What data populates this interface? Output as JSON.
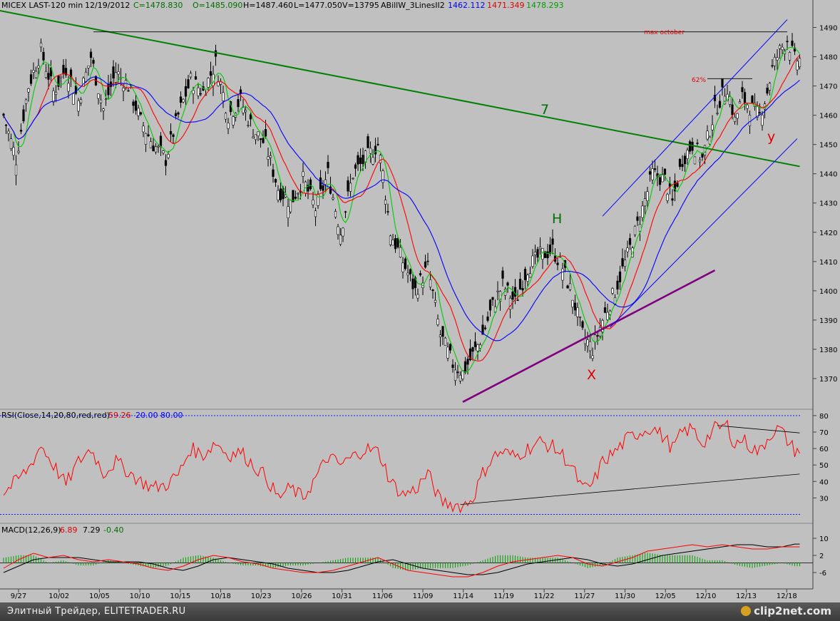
{
  "header": {
    "symbol": "MICEX LAST-120 min",
    "date": "12/19/2012",
    "close": "C=1478.830",
    "open": "O=1485.090",
    "high": "H=1487.460",
    "low": "L=1477.050",
    "volume": "V=13795",
    "study": "ABillW_3LinesII2",
    "ma_blue": "1462.112",
    "ma_red": "1471.349",
    "ma_green": "1478.293"
  },
  "colors": {
    "background": "#c0c0c0",
    "ma_blue": "#0000ff",
    "ma_red": "#ff0000",
    "ma_green": "#00cc00",
    "trend_green": "#008000",
    "trend_purple": "#800080"
  },
  "annotations": {
    "max_october": "max october",
    "fib": "62%",
    "wave_7": "7",
    "wave_h": "H",
    "wave_x": "X",
    "wave_y": "y"
  },
  "rsi_panel": {
    "label": "RSI(Close,14,20,80,red,red)",
    "value": "59.26",
    "low": "20.00",
    "high": "80.00"
  },
  "macd_panel": {
    "label": "MACD(12,26,9)",
    "macd": "6.89",
    "signal": "7.29",
    "hist": "-0.40"
  },
  "footer": {
    "site": "Элитный Трейдер, ELITETRADER.RU",
    "logo": "clip2net.com"
  },
  "chart_data": [
    {
      "type": "candlestick",
      "title": "MICEX LAST-120 min",
      "ylim": [
        1360,
        1495
      ],
      "y_ticks": [
        1370,
        1380,
        1390,
        1400,
        1410,
        1420,
        1430,
        1440,
        1450,
        1460,
        1470,
        1480,
        1490
      ],
      "x_ticks": [
        "9/27",
        "10/02",
        "10/05",
        "10/10",
        "10/15",
        "10/18",
        "10/23",
        "10/26",
        "10/31",
        "11/06",
        "11/09",
        "11/14",
        "11/19",
        "11/22",
        "11/27",
        "11/30",
        "12/05",
        "12/10",
        "12/13",
        "12/18"
      ],
      "anchors": [
        [
          0,
          1460
        ],
        [
          5,
          1445
        ],
        [
          10,
          1470
        ],
        [
          15,
          1482
        ],
        [
          20,
          1468
        ],
        [
          25,
          1476
        ],
        [
          30,
          1465
        ],
        [
          35,
          1480
        ],
        [
          40,
          1462
        ],
        [
          45,
          1475
        ],
        [
          50,
          1470
        ],
        [
          55,
          1458
        ],
        [
          60,
          1450
        ],
        [
          65,
          1445
        ],
        [
          70,
          1460
        ],
        [
          75,
          1472
        ],
        [
          80,
          1468
        ],
        [
          85,
          1478
        ],
        [
          90,
          1460
        ],
        [
          95,
          1465
        ],
        [
          100,
          1455
        ],
        [
          105,
          1450
        ],
        [
          110,
          1435
        ],
        [
          115,
          1430
        ],
        [
          120,
          1438
        ],
        [
          125,
          1428
        ],
        [
          130,
          1440
        ],
        [
          135,
          1420
        ],
        [
          140,
          1440
        ],
        [
          145,
          1445
        ],
        [
          150,
          1450
        ],
        [
          152,
          1440
        ],
        [
          155,
          1420
        ],
        [
          160,
          1410
        ],
        [
          165,
          1400
        ],
        [
          170,
          1408
        ],
        [
          175,
          1385
        ],
        [
          180,
          1375
        ],
        [
          184,
          1372
        ],
        [
          188,
          1378
        ],
        [
          192,
          1385
        ],
        [
          196,
          1395
        ],
        [
          200,
          1402
        ],
        [
          205,
          1396
        ],
        [
          210,
          1408
        ],
        [
          215,
          1412
        ],
        [
          220,
          1414
        ],
        [
          224,
          1408
        ],
        [
          228,
          1398
        ],
        [
          232,
          1385
        ],
        [
          236,
          1380
        ],
        [
          240,
          1390
        ],
        [
          245,
          1400
        ],
        [
          250,
          1412
        ],
        [
          255,
          1425
        ],
        [
          260,
          1440
        ],
        [
          265,
          1438
        ],
        [
          268,
          1430
        ],
        [
          272,
          1445
        ],
        [
          276,
          1450
        ],
        [
          280,
          1445
        ],
        [
          285,
          1462
        ],
        [
          290,
          1470
        ],
        [
          293,
          1458
        ],
        [
          296,
          1466
        ],
        [
          300,
          1462
        ],
        [
          303,
          1460
        ],
        [
          306,
          1468
        ],
        [
          308,
          1476
        ],
        [
          311,
          1482
        ],
        [
          314,
          1486
        ],
        [
          317,
          1479
        ]
      ],
      "moving_averages": [
        {
          "name": "ma_green",
          "period": 5,
          "value": 1478.293
        },
        {
          "name": "ma_red",
          "period": 13,
          "value": 1471.349
        },
        {
          "name": "ma_blue",
          "period": 26,
          "value": 1462.112
        }
      ],
      "trendlines": [
        {
          "color": "green",
          "points": [
            [
              -3,
              1496
            ],
            [
              319,
              1442.5
            ]
          ]
        },
        {
          "color": "black",
          "points": [
            [
              36,
              1488.5
            ],
            [
              314,
              1488.5
            ]
          ]
        },
        {
          "color": "black",
          "points": [
            [
              282,
              1472.5
            ],
            [
              300,
              1472.5
            ]
          ]
        },
        {
          "color": "purple",
          "points": [
            [
              184,
              1362
            ],
            [
              285,
              1407
            ]
          ]
        },
        {
          "color": "blue",
          "points": [
            [
              240,
              1425.5
            ],
            [
              314,
              1492.7
            ]
          ]
        },
        {
          "color": "blue",
          "points": [
            [
              243,
              1387.5
            ],
            [
              318,
              1452
            ]
          ]
        }
      ]
    },
    {
      "type": "line",
      "title": "RSI(Close,14,20,80,red,red)",
      "ylim": [
        15,
        83
      ],
      "y_ticks": [
        30,
        40,
        50,
        60,
        70,
        80
      ],
      "levels": [
        20,
        80
      ],
      "anchors": [
        [
          0,
          33
        ],
        [
          5,
          40
        ],
        [
          10,
          48
        ],
        [
          15,
          62
        ],
        [
          20,
          50
        ],
        [
          25,
          38
        ],
        [
          30,
          52
        ],
        [
          35,
          60
        ],
        [
          40,
          45
        ],
        [
          45,
          52
        ],
        [
          50,
          46
        ],
        [
          55,
          40
        ],
        [
          60,
          36
        ],
        [
          65,
          38
        ],
        [
          70,
          44
        ],
        [
          75,
          60
        ],
        [
          80,
          56
        ],
        [
          85,
          64
        ],
        [
          90,
          56
        ],
        [
          95,
          58
        ],
        [
          100,
          50
        ],
        [
          105,
          43
        ],
        [
          110,
          30
        ],
        [
          115,
          36
        ],
        [
          120,
          30
        ],
        [
          125,
          42
        ],
        [
          130,
          55
        ],
        [
          135,
          50
        ],
        [
          140,
          55
        ],
        [
          145,
          60
        ],
        [
          150,
          58
        ],
        [
          152,
          52
        ],
        [
          155,
          40
        ],
        [
          160,
          32
        ],
        [
          165,
          35
        ],
        [
          170,
          45
        ],
        [
          175,
          28
        ],
        [
          180,
          26
        ],
        [
          184,
          25
        ],
        [
          188,
          30
        ],
        [
          192,
          45
        ],
        [
          196,
          55
        ],
        [
          200,
          58
        ],
        [
          205,
          55
        ],
        [
          210,
          60
        ],
        [
          215,
          64
        ],
        [
          220,
          61
        ],
        [
          224,
          56
        ],
        [
          228,
          48
        ],
        [
          232,
          35
        ],
        [
          236,
          38
        ],
        [
          240,
          52
        ],
        [
          245,
          58
        ],
        [
          250,
          66
        ],
        [
          255,
          70
        ],
        [
          260,
          73
        ],
        [
          265,
          66
        ],
        [
          268,
          60
        ],
        [
          272,
          70
        ],
        [
          276,
          72
        ],
        [
          280,
          63
        ],
        [
          285,
          72
        ],
        [
          290,
          74
        ],
        [
          293,
          62
        ],
        [
          296,
          66
        ],
        [
          300,
          60
        ],
        [
          303,
          58
        ],
        [
          306,
          66
        ],
        [
          308,
          70
        ],
        [
          311,
          72
        ],
        [
          314,
          65
        ],
        [
          317,
          59
        ]
      ],
      "trendlines": [
        {
          "points": [
            [
              286,
              74
            ],
            [
              319,
              69.5
            ]
          ]
        },
        {
          "points": [
            [
              183,
              26
            ],
            [
              319,
              44.5
            ]
          ]
        }
      ]
    },
    {
      "type": "line",
      "title": "MACD(12,26,9)",
      "ylim": [
        -13,
        15
      ],
      "y_ticks": [
        -6,
        2,
        10
      ],
      "zero_line": -1.5,
      "macd": [
        [
          0,
          -4
        ],
        [
          6,
          0
        ],
        [
          12,
          3
        ],
        [
          18,
          1
        ],
        [
          24,
          2
        ],
        [
          30,
          0
        ],
        [
          36,
          -1
        ],
        [
          42,
          0
        ],
        [
          48,
          -1
        ],
        [
          54,
          -2
        ],
        [
          60,
          -4
        ],
        [
          66,
          -5
        ],
        [
          72,
          -3
        ],
        [
          78,
          0
        ],
        [
          84,
          2
        ],
        [
          90,
          1
        ],
        [
          96,
          -1
        ],
        [
          102,
          -2
        ],
        [
          108,
          -4
        ],
        [
          114,
          -5
        ],
        [
          120,
          -6
        ],
        [
          126,
          -6
        ],
        [
          132,
          -5
        ],
        [
          138,
          -3
        ],
        [
          144,
          -1
        ],
        [
          150,
          1
        ],
        [
          156,
          -2
        ],
        [
          162,
          -5
        ],
        [
          168,
          -6
        ],
        [
          174,
          -7
        ],
        [
          180,
          -8
        ],
        [
          186,
          -8
        ],
        [
          192,
          -6
        ],
        [
          198,
          -3
        ],
        [
          204,
          -1
        ],
        [
          210,
          0
        ],
        [
          216,
          1
        ],
        [
          222,
          2
        ],
        [
          228,
          1
        ],
        [
          234,
          -2
        ],
        [
          240,
          -3
        ],
        [
          246,
          -1
        ],
        [
          252,
          1
        ],
        [
          258,
          4
        ],
        [
          264,
          5
        ],
        [
          270,
          6
        ],
        [
          276,
          7
        ],
        [
          282,
          6
        ],
        [
          288,
          7
        ],
        [
          294,
          6
        ],
        [
          300,
          5
        ],
        [
          306,
          5
        ],
        [
          312,
          6
        ],
        [
          317,
          6
        ]
      ],
      "signal": [
        [
          0,
          -6
        ],
        [
          6,
          -3
        ],
        [
          12,
          0
        ],
        [
          18,
          1
        ],
        [
          24,
          1
        ],
        [
          30,
          1
        ],
        [
          36,
          0
        ],
        [
          42,
          -1
        ],
        [
          48,
          -1
        ],
        [
          54,
          -1
        ],
        [
          60,
          -2
        ],
        [
          66,
          -4
        ],
        [
          72,
          -5
        ],
        [
          78,
          -3
        ],
        [
          84,
          0
        ],
        [
          90,
          1
        ],
        [
          96,
          0
        ],
        [
          102,
          -1
        ],
        [
          108,
          -2
        ],
        [
          114,
          -4
        ],
        [
          120,
          -5
        ],
        [
          126,
          -6
        ],
        [
          132,
          -6
        ],
        [
          138,
          -5
        ],
        [
          144,
          -3
        ],
        [
          150,
          -1
        ],
        [
          156,
          0
        ],
        [
          162,
          -2
        ],
        [
          168,
          -4
        ],
        [
          174,
          -5
        ],
        [
          180,
          -6
        ],
        [
          186,
          -7
        ],
        [
          192,
          -7
        ],
        [
          198,
          -6
        ],
        [
          204,
          -4
        ],
        [
          210,
          -2
        ],
        [
          216,
          -1
        ],
        [
          222,
          0
        ],
        [
          228,
          1
        ],
        [
          234,
          0
        ],
        [
          240,
          -2
        ],
        [
          246,
          -3
        ],
        [
          252,
          -2
        ],
        [
          258,
          0
        ],
        [
          264,
          2
        ],
        [
          270,
          3
        ],
        [
          276,
          4
        ],
        [
          282,
          5
        ],
        [
          288,
          6
        ],
        [
          294,
          7
        ],
        [
          300,
          7
        ],
        [
          306,
          6
        ],
        [
          312,
          6
        ],
        [
          317,
          7.3
        ]
      ]
    }
  ]
}
